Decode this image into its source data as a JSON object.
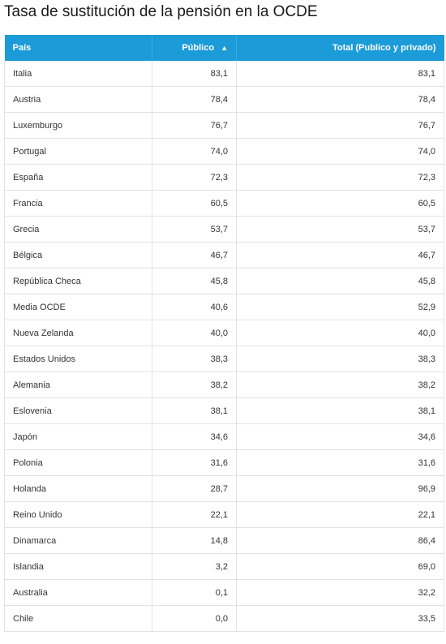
{
  "title": "Tasa de sustitución de la pensión en la OCDE",
  "colors": {
    "header_bg": "#1b9bd8",
    "header_text": "#ffffff",
    "row_border": "#e2e2e2"
  },
  "chart_data": {
    "type": "table",
    "title": "Tasa de sustitución de la pensión en la OCDE",
    "columns": [
      "País",
      "Público",
      "Total (Publico y privado)"
    ],
    "sorted_column": "Público",
    "sort_indicator": "▲",
    "rows": [
      [
        "Italia",
        "83,1",
        "83,1"
      ],
      [
        "Austria",
        "78,4",
        "78,4"
      ],
      [
        "Luxemburgo",
        "76,7",
        "76,7"
      ],
      [
        "Portugal",
        "74,0",
        "74,0"
      ],
      [
        "España",
        "72,3",
        "72,3"
      ],
      [
        "Francia",
        "60,5",
        "60,5"
      ],
      [
        "Grecia",
        "53,7",
        "53,7"
      ],
      [
        "Bélgica",
        "46,7",
        "46,7"
      ],
      [
        "República Checa",
        "45,8",
        "45,8"
      ],
      [
        "Media OCDE",
        "40,6",
        "52,9"
      ],
      [
        "Nueva Zelanda",
        "40,0",
        "40,0"
      ],
      [
        "Estados Unidos",
        "38,3",
        "38,3"
      ],
      [
        "Alemania",
        "38,2",
        "38,2"
      ],
      [
        "Eslovenia",
        "38,1",
        "38,1"
      ],
      [
        "Japón",
        "34,6",
        "34,6"
      ],
      [
        "Polonia",
        "31,6",
        "31,6"
      ],
      [
        "Holanda",
        "28,7",
        "96,9"
      ],
      [
        "Reino Unido",
        "22,1",
        "22,1"
      ],
      [
        "Dinamarca",
        "14,8",
        "86,4"
      ],
      [
        "Islandia",
        "3,2",
        "69,0"
      ],
      [
        "Australia",
        "0,1",
        "32,2"
      ],
      [
        "Chile",
        "0,0",
        "33,5"
      ]
    ]
  }
}
